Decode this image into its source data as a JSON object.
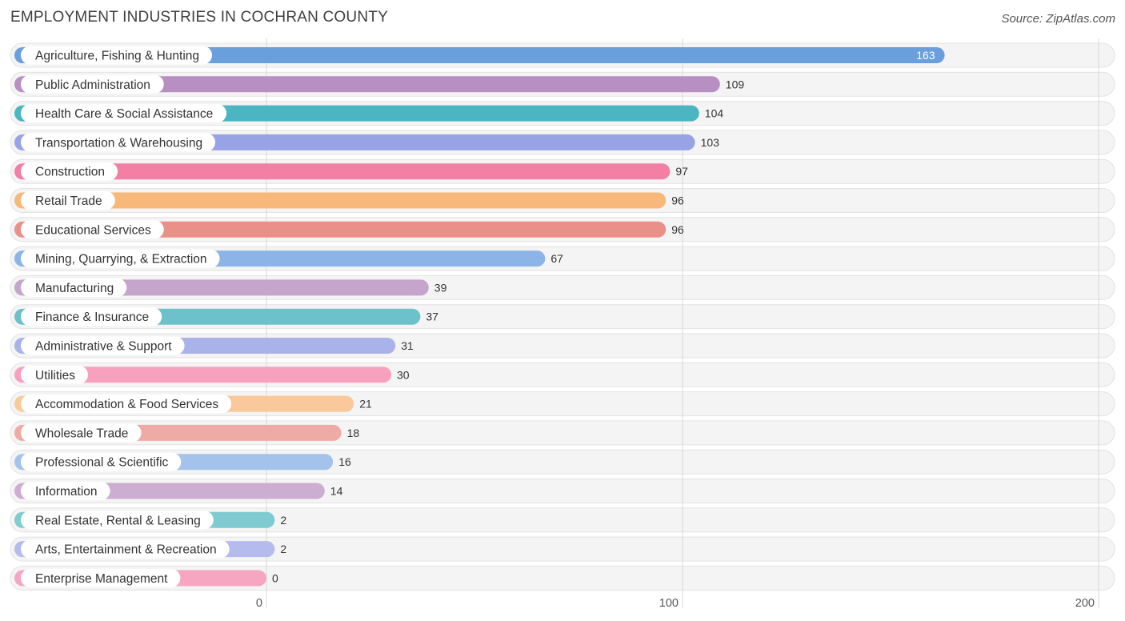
{
  "header": {
    "title": "EMPLOYMENT INDUSTRIES IN COCHRAN COUNTY",
    "source": "Source: ZipAtlas.com"
  },
  "chart_data": {
    "type": "bar",
    "orientation": "horizontal",
    "title": "EMPLOYMENT INDUSTRIES IN COCHRAN COUNTY",
    "xlabel": "",
    "ylabel": "",
    "xlim": [
      0,
      200
    ],
    "xticks": [
      0,
      100,
      200
    ],
    "grid": true,
    "categories": [
      "Agriculture, Fishing & Hunting",
      "Public Administration",
      "Health Care & Social Assistance",
      "Transportation & Warehousing",
      "Construction",
      "Retail Trade",
      "Educational Services",
      "Mining, Quarrying, & Extraction",
      "Manufacturing",
      "Finance & Insurance",
      "Administrative & Support",
      "Utilities",
      "Accommodation & Food Services",
      "Wholesale Trade",
      "Professional & Scientific",
      "Information",
      "Real Estate, Rental & Leasing",
      "Arts, Entertainment & Recreation",
      "Enterprise Management"
    ],
    "values": [
      163,
      109,
      104,
      103,
      97,
      96,
      96,
      67,
      39,
      37,
      31,
      30,
      21,
      18,
      16,
      14,
      2,
      2,
      0
    ],
    "colors": [
      "#6a9fdc",
      "#b78fc3",
      "#4bb5c1",
      "#98a3e5",
      "#f47fa5",
      "#f8b879",
      "#e99089",
      "#8db4e6",
      "#c6a5cd",
      "#6dc1ca",
      "#aab2ea",
      "#f7a1bf",
      "#f9c89b",
      "#eeaaa4",
      "#a4c3ec",
      "#cdaed3",
      "#7fcbd1",
      "#b5bbed",
      "#f7a6c2"
    ]
  }
}
